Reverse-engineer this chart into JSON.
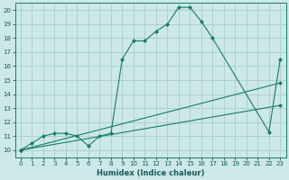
{
  "xlabel": "Humidex (Indice chaleur)",
  "bg_color": "#cce8e8",
  "grid_color": "#aacccc",
  "line_color": "#1a7a6e",
  "xlim": [
    -0.5,
    23.5
  ],
  "ylim": [
    9.5,
    20.5
  ],
  "line1_x": [
    0,
    1,
    2,
    3,
    4,
    5,
    6,
    7,
    8,
    9,
    10,
    11,
    12,
    13,
    14,
    15,
    16,
    17,
    22,
    23
  ],
  "line1_y": [
    10.0,
    10.5,
    11.0,
    11.2,
    11.2,
    11.0,
    10.3,
    11.0,
    11.2,
    16.5,
    17.8,
    17.8,
    18.5,
    19.0,
    20.2,
    20.2,
    19.2,
    18.0,
    11.3,
    16.5
  ],
  "line2_x": [
    0,
    23
  ],
  "line2_y": [
    10.0,
    14.8
  ],
  "line3_x": [
    0,
    23
  ],
  "line3_y": [
    10.0,
    13.2
  ]
}
